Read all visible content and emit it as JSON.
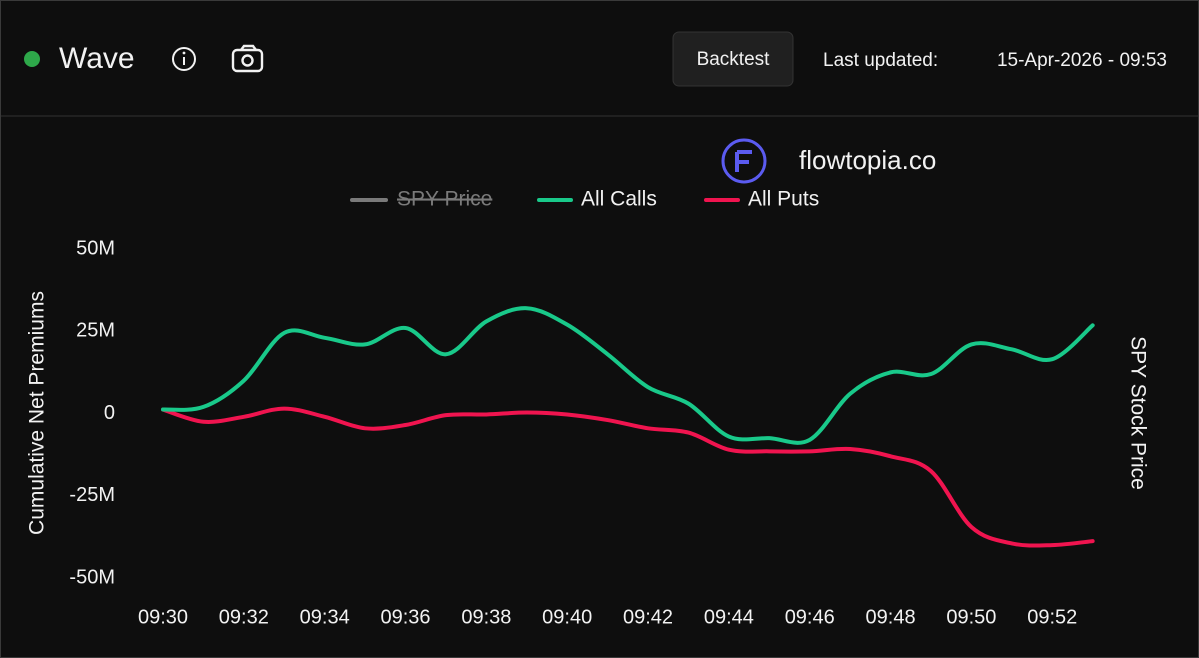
{
  "header": {
    "title": "Wave",
    "button": "Backtest",
    "updated_label": "Last updated:",
    "updated_value": "15-Apr-2026 - 09:53"
  },
  "chart_data": {
    "type": "line",
    "watermark": "flowtopia.co",
    "ylabel": "Cumulative Net Premiums",
    "y2label": "SPY Stock Price",
    "hidden_series": {
      "name": "SPY Price",
      "color": "#7a7a7a"
    },
    "categories": [
      "09:30",
      null,
      "09:32",
      null,
      "09:34",
      null,
      "09:36",
      null,
      "09:38",
      null,
      "09:40",
      null,
      "09:42",
      null,
      "09:44",
      null,
      "09:46",
      null,
      "09:48",
      null,
      "09:50",
      null,
      "09:52",
      null
    ],
    "series": [
      {
        "name": "All Calls",
        "color": "#19c98a",
        "values": [
          1.2,
          2,
          10,
          24.5,
          23,
          21,
          26,
          18,
          28,
          32,
          27,
          18,
          8,
          3,
          -7,
          -7.5,
          -8,
          6,
          12.5,
          12,
          21,
          19.5,
          16.5,
          26.8
        ]
      },
      {
        "name": "All Puts",
        "color": "#f0144f",
        "values": [
          1.2,
          -2.5,
          -1,
          1.5,
          -1,
          -4.5,
          -3.5,
          -0.5,
          -0.3,
          0.3,
          -0.3,
          -2,
          -4.5,
          -5.8,
          -11,
          -11.5,
          -11.5,
          -10.8,
          -13,
          -17.5,
          -34.5,
          -39.5,
          -40,
          -38.8
        ]
      }
    ],
    "ylim": [
      -50,
      50
    ],
    "yticks": [
      {
        "value": -50,
        "label": "-50M"
      },
      {
        "value": -25,
        "label": "-25M"
      },
      0,
      {
        "value": 25,
        "label": "25M"
      },
      {
        "value": 50,
        "label": "50M"
      }
    ],
    "grid": false
  }
}
